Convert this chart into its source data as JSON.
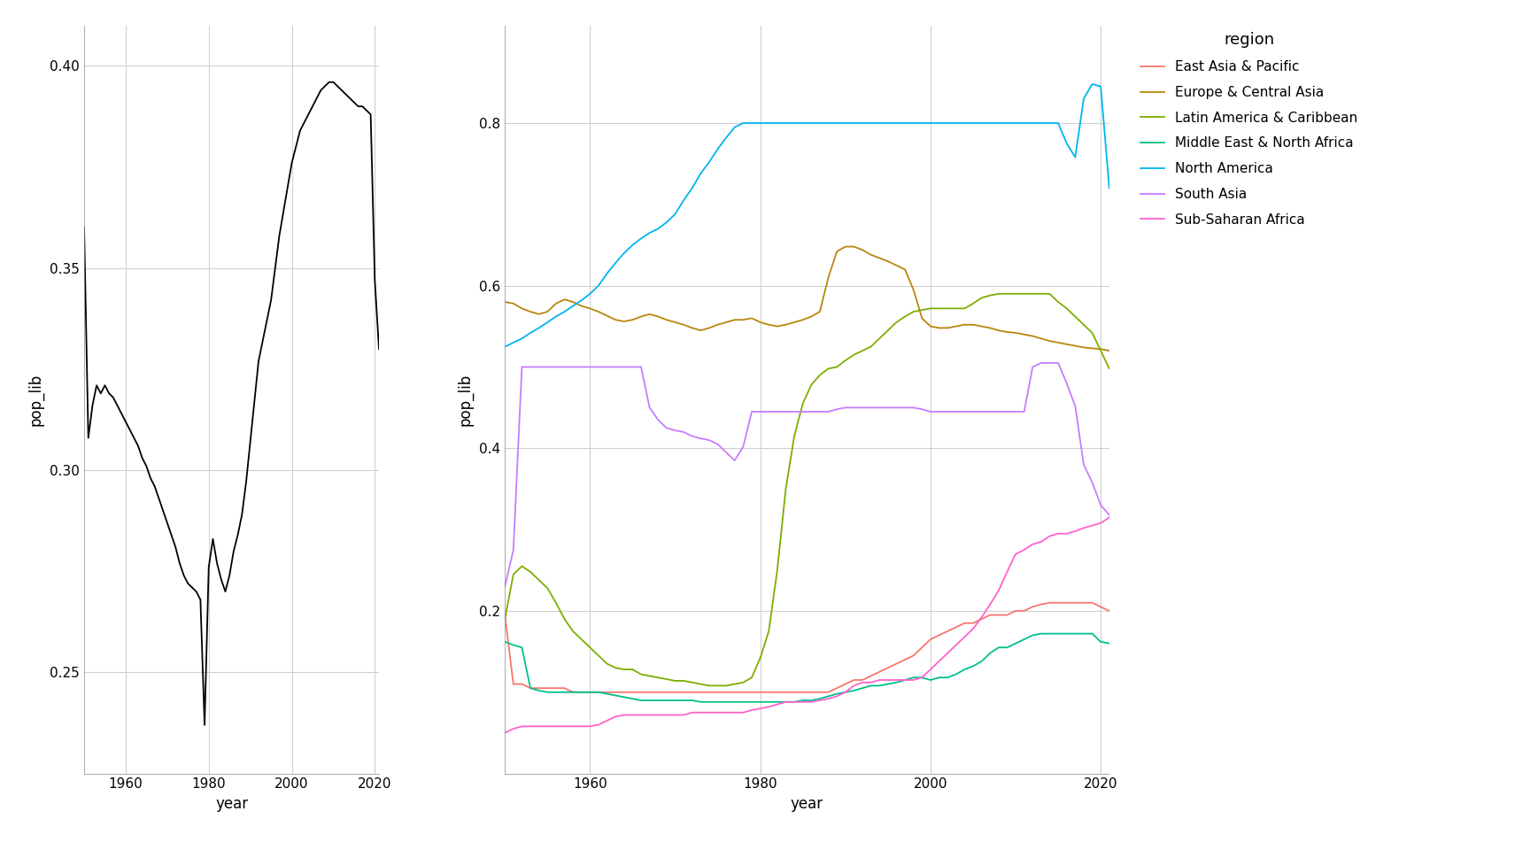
{
  "left_ylabel": "pop_lib",
  "right_ylabel": "pop_lib",
  "xlabel": "year",
  "legend_title": "region",
  "background_color": "#ffffff",
  "panel_bg": "#ffffff",
  "grid_color": "#d0d0d0",
  "left": {
    "years": [
      1950,
      1951,
      1952,
      1953,
      1954,
      1955,
      1956,
      1957,
      1958,
      1959,
      1960,
      1961,
      1962,
      1963,
      1964,
      1965,
      1966,
      1967,
      1968,
      1969,
      1970,
      1971,
      1972,
      1973,
      1974,
      1975,
      1976,
      1977,
      1978,
      1979,
      1980,
      1981,
      1982,
      1983,
      1984,
      1985,
      1986,
      1987,
      1988,
      1989,
      1990,
      1991,
      1992,
      1993,
      1994,
      1995,
      1996,
      1997,
      1998,
      1999,
      2000,
      2001,
      2002,
      2003,
      2004,
      2005,
      2006,
      2007,
      2008,
      2009,
      2010,
      2011,
      2012,
      2013,
      2014,
      2015,
      2016,
      2017,
      2018,
      2019,
      2020,
      2021
    ],
    "values": [
      0.36,
      0.308,
      0.316,
      0.321,
      0.319,
      0.321,
      0.319,
      0.318,
      0.316,
      0.314,
      0.312,
      0.31,
      0.308,
      0.306,
      0.303,
      0.301,
      0.298,
      0.296,
      0.293,
      0.29,
      0.287,
      0.284,
      0.281,
      0.277,
      0.274,
      0.272,
      0.271,
      0.27,
      0.268,
      0.237,
      0.276,
      0.283,
      0.277,
      0.273,
      0.27,
      0.274,
      0.28,
      0.284,
      0.289,
      0.297,
      0.307,
      0.317,
      0.327,
      0.332,
      0.337,
      0.342,
      0.35,
      0.358,
      0.364,
      0.37,
      0.376,
      0.38,
      0.384,
      0.386,
      0.388,
      0.39,
      0.392,
      0.394,
      0.395,
      0.396,
      0.396,
      0.395,
      0.394,
      0.393,
      0.392,
      0.391,
      0.39,
      0.39,
      0.389,
      0.388,
      0.347,
      0.33
    ]
  },
  "regions": {
    "East Asia & Pacific": {
      "color": "#f8766d",
      "years": [
        1950,
        1951,
        1952,
        1953,
        1954,
        1955,
        1956,
        1957,
        1958,
        1959,
        1960,
        1961,
        1962,
        1963,
        1964,
        1965,
        1966,
        1967,
        1968,
        1969,
        1970,
        1971,
        1972,
        1973,
        1974,
        1975,
        1976,
        1977,
        1978,
        1979,
        1980,
        1981,
        1982,
        1983,
        1984,
        1985,
        1986,
        1987,
        1988,
        1989,
        1990,
        1991,
        1992,
        1993,
        1994,
        1995,
        1996,
        1997,
        1998,
        1999,
        2000,
        2001,
        2002,
        2003,
        2004,
        2005,
        2006,
        2007,
        2008,
        2009,
        2010,
        2011,
        2012,
        2013,
        2014,
        2015,
        2016,
        2017,
        2018,
        2019,
        2020,
        2021
      ],
      "values": [
        0.195,
        0.11,
        0.11,
        0.105,
        0.105,
        0.105,
        0.105,
        0.105,
        0.1,
        0.1,
        0.1,
        0.1,
        0.1,
        0.1,
        0.1,
        0.1,
        0.1,
        0.1,
        0.1,
        0.1,
        0.1,
        0.1,
        0.1,
        0.1,
        0.1,
        0.1,
        0.1,
        0.1,
        0.1,
        0.1,
        0.1,
        0.1,
        0.1,
        0.1,
        0.1,
        0.1,
        0.1,
        0.1,
        0.1,
        0.105,
        0.11,
        0.115,
        0.115,
        0.12,
        0.125,
        0.13,
        0.135,
        0.14,
        0.145,
        0.155,
        0.165,
        0.17,
        0.175,
        0.18,
        0.185,
        0.185,
        0.19,
        0.195,
        0.195,
        0.195,
        0.2,
        0.2,
        0.205,
        0.208,
        0.21,
        0.21,
        0.21,
        0.21,
        0.21,
        0.21,
        0.205,
        0.2
      ]
    },
    "Europe & Central Asia": {
      "color": "#b8860b",
      "years": [
        1950,
        1951,
        1952,
        1953,
        1954,
        1955,
        1956,
        1957,
        1958,
        1959,
        1960,
        1961,
        1962,
        1963,
        1964,
        1965,
        1966,
        1967,
        1968,
        1969,
        1970,
        1971,
        1972,
        1973,
        1974,
        1975,
        1976,
        1977,
        1978,
        1979,
        1980,
        1981,
        1982,
        1983,
        1984,
        1985,
        1986,
        1987,
        1988,
        1989,
        1990,
        1991,
        1992,
        1993,
        1994,
        1995,
        1996,
        1997,
        1998,
        1999,
        2000,
        2001,
        2002,
        2003,
        2004,
        2005,
        2006,
        2007,
        2008,
        2009,
        2010,
        2011,
        2012,
        2013,
        2014,
        2015,
        2016,
        2017,
        2018,
        2019,
        2020,
        2021
      ],
      "values": [
        0.58,
        0.578,
        0.572,
        0.568,
        0.565,
        0.568,
        0.578,
        0.583,
        0.58,
        0.575,
        0.572,
        0.568,
        0.563,
        0.558,
        0.556,
        0.558,
        0.562,
        0.565,
        0.562,
        0.558,
        0.555,
        0.552,
        0.548,
        0.545,
        0.548,
        0.552,
        0.555,
        0.558,
        0.558,
        0.56,
        0.555,
        0.552,
        0.55,
        0.552,
        0.555,
        0.558,
        0.562,
        0.568,
        0.61,
        0.642,
        0.648,
        0.648,
        0.644,
        0.638,
        0.634,
        0.63,
        0.625,
        0.62,
        0.595,
        0.56,
        0.55,
        0.548,
        0.548,
        0.55,
        0.552,
        0.552,
        0.55,
        0.548,
        0.545,
        0.543,
        0.542,
        0.54,
        0.538,
        0.535,
        0.532,
        0.53,
        0.528,
        0.526,
        0.524,
        0.523,
        0.522,
        0.52
      ]
    },
    "Latin America & Caribbean": {
      "color": "#7cae00",
      "years": [
        1950,
        1951,
        1952,
        1953,
        1954,
        1955,
        1956,
        1957,
        1958,
        1959,
        1960,
        1961,
        1962,
        1963,
        1964,
        1965,
        1966,
        1967,
        1968,
        1969,
        1970,
        1971,
        1972,
        1973,
        1974,
        1975,
        1976,
        1977,
        1978,
        1979,
        1980,
        1981,
        1982,
        1983,
        1984,
        1985,
        1986,
        1987,
        1988,
        1989,
        1990,
        1991,
        1992,
        1993,
        1994,
        1995,
        1996,
        1997,
        1998,
        1999,
        2000,
        2001,
        2002,
        2003,
        2004,
        2005,
        2006,
        2007,
        2008,
        2009,
        2010,
        2011,
        2012,
        2013,
        2014,
        2015,
        2016,
        2017,
        2018,
        2019,
        2020,
        2021
      ],
      "values": [
        0.19,
        0.245,
        0.255,
        0.248,
        0.238,
        0.228,
        0.21,
        0.19,
        0.175,
        0.165,
        0.155,
        0.145,
        0.135,
        0.13,
        0.128,
        0.128,
        0.122,
        0.12,
        0.118,
        0.116,
        0.114,
        0.114,
        0.112,
        0.11,
        0.108,
        0.108,
        0.108,
        0.11,
        0.112,
        0.118,
        0.142,
        0.175,
        0.25,
        0.35,
        0.415,
        0.455,
        0.478,
        0.49,
        0.498,
        0.5,
        0.508,
        0.515,
        0.52,
        0.525,
        0.535,
        0.545,
        0.555,
        0.562,
        0.568,
        0.57,
        0.572,
        0.572,
        0.572,
        0.572,
        0.572,
        0.578,
        0.585,
        0.588,
        0.59,
        0.59,
        0.59,
        0.59,
        0.59,
        0.59,
        0.59,
        0.58,
        0.572,
        0.562,
        0.552,
        0.542,
        0.52,
        0.498
      ]
    },
    "Middle East & North Africa": {
      "color": "#00c08b",
      "years": [
        1950,
        1951,
        1952,
        1953,
        1954,
        1955,
        1956,
        1957,
        1958,
        1959,
        1960,
        1961,
        1962,
        1963,
        1964,
        1965,
        1966,
        1967,
        1968,
        1969,
        1970,
        1971,
        1972,
        1973,
        1974,
        1975,
        1976,
        1977,
        1978,
        1979,
        1980,
        1981,
        1982,
        1983,
        1984,
        1985,
        1986,
        1987,
        1988,
        1989,
        1990,
        1991,
        1992,
        1993,
        1994,
        1995,
        1996,
        1997,
        1998,
        1999,
        2000,
        2001,
        2002,
        2003,
        2004,
        2005,
        2006,
        2007,
        2008,
        2009,
        2010,
        2011,
        2012,
        2013,
        2014,
        2015,
        2016,
        2017,
        2018,
        2019,
        2020,
        2021
      ],
      "values": [
        0.162,
        0.158,
        0.155,
        0.105,
        0.102,
        0.1,
        0.1,
        0.1,
        0.1,
        0.1,
        0.1,
        0.1,
        0.098,
        0.096,
        0.094,
        0.092,
        0.09,
        0.09,
        0.09,
        0.09,
        0.09,
        0.09,
        0.09,
        0.088,
        0.088,
        0.088,
        0.088,
        0.088,
        0.088,
        0.088,
        0.088,
        0.088,
        0.088,
        0.088,
        0.088,
        0.09,
        0.09,
        0.092,
        0.095,
        0.098,
        0.1,
        0.102,
        0.105,
        0.108,
        0.108,
        0.11,
        0.112,
        0.115,
        0.118,
        0.118,
        0.115,
        0.118,
        0.118,
        0.122,
        0.128,
        0.132,
        0.138,
        0.148,
        0.155,
        0.155,
        0.16,
        0.165,
        0.17,
        0.172,
        0.172,
        0.172,
        0.172,
        0.172,
        0.172,
        0.172,
        0.162,
        0.16
      ]
    },
    "North America": {
      "color": "#00b4f0",
      "years": [
        1950,
        1951,
        1952,
        1953,
        1954,
        1955,
        1956,
        1957,
        1958,
        1959,
        1960,
        1961,
        1962,
        1963,
        1964,
        1965,
        1966,
        1967,
        1968,
        1969,
        1970,
        1971,
        1972,
        1973,
        1974,
        1975,
        1976,
        1977,
        1978,
        1979,
        1980,
        1981,
        1982,
        1983,
        1984,
        1985,
        1986,
        1987,
        1988,
        1989,
        1990,
        1991,
        1992,
        1993,
        1994,
        1995,
        1996,
        1997,
        1998,
        1999,
        2000,
        2001,
        2002,
        2003,
        2004,
        2005,
        2006,
        2007,
        2008,
        2009,
        2010,
        2011,
        2012,
        2013,
        2014,
        2015,
        2016,
        2017,
        2018,
        2019,
        2020,
        2021
      ],
      "values": [
        0.525,
        0.53,
        0.535,
        0.542,
        0.548,
        0.555,
        0.562,
        0.568,
        0.575,
        0.582,
        0.59,
        0.6,
        0.615,
        0.628,
        0.64,
        0.65,
        0.658,
        0.665,
        0.67,
        0.678,
        0.688,
        0.705,
        0.72,
        0.738,
        0.752,
        0.768,
        0.782,
        0.795,
        0.8,
        0.8,
        0.8,
        0.8,
        0.8,
        0.8,
        0.8,
        0.8,
        0.8,
        0.8,
        0.8,
        0.8,
        0.8,
        0.8,
        0.8,
        0.8,
        0.8,
        0.8,
        0.8,
        0.8,
        0.8,
        0.8,
        0.8,
        0.8,
        0.8,
        0.8,
        0.8,
        0.8,
        0.8,
        0.8,
        0.8,
        0.8,
        0.8,
        0.8,
        0.8,
        0.8,
        0.8,
        0.8,
        0.775,
        0.758,
        0.83,
        0.848,
        0.845,
        0.72
      ]
    },
    "South Asia": {
      "color": "#c77cff",
      "years": [
        1950,
        1951,
        1952,
        1953,
        1954,
        1955,
        1956,
        1957,
        1958,
        1959,
        1960,
        1961,
        1962,
        1963,
        1964,
        1965,
        1966,
        1967,
        1968,
        1969,
        1970,
        1971,
        1972,
        1973,
        1974,
        1975,
        1976,
        1977,
        1978,
        1979,
        1980,
        1981,
        1982,
        1983,
        1984,
        1985,
        1986,
        1987,
        1988,
        1989,
        1990,
        1991,
        1992,
        1993,
        1994,
        1995,
        1996,
        1997,
        1998,
        1999,
        2000,
        2001,
        2002,
        2003,
        2004,
        2005,
        2006,
        2007,
        2008,
        2009,
        2010,
        2011,
        2012,
        2013,
        2014,
        2015,
        2016,
        2017,
        2018,
        2019,
        2020,
        2021
      ],
      "values": [
        0.23,
        0.275,
        0.5,
        0.5,
        0.5,
        0.5,
        0.5,
        0.5,
        0.5,
        0.5,
        0.5,
        0.5,
        0.5,
        0.5,
        0.5,
        0.5,
        0.5,
        0.45,
        0.435,
        0.425,
        0.422,
        0.42,
        0.415,
        0.412,
        0.41,
        0.405,
        0.395,
        0.385,
        0.402,
        0.445,
        0.445,
        0.445,
        0.445,
        0.445,
        0.445,
        0.445,
        0.445,
        0.445,
        0.445,
        0.448,
        0.45,
        0.45,
        0.45,
        0.45,
        0.45,
        0.45,
        0.45,
        0.45,
        0.45,
        0.448,
        0.445,
        0.445,
        0.445,
        0.445,
        0.445,
        0.445,
        0.445,
        0.445,
        0.445,
        0.445,
        0.445,
        0.445,
        0.5,
        0.505,
        0.505,
        0.505,
        0.48,
        0.452,
        0.38,
        0.358,
        0.33,
        0.318
      ]
    },
    "Sub-Saharan Africa": {
      "color": "#ff61cc",
      "years": [
        1950,
        1951,
        1952,
        1953,
        1954,
        1955,
        1956,
        1957,
        1958,
        1959,
        1960,
        1961,
        1962,
        1963,
        1964,
        1965,
        1966,
        1967,
        1968,
        1969,
        1970,
        1971,
        1972,
        1973,
        1974,
        1975,
        1976,
        1977,
        1978,
        1979,
        1980,
        1981,
        1982,
        1983,
        1984,
        1985,
        1986,
        1987,
        1988,
        1989,
        1990,
        1991,
        1992,
        1993,
        1994,
        1995,
        1996,
        1997,
        1998,
        1999,
        2000,
        2001,
        2002,
        2003,
        2004,
        2005,
        2006,
        2007,
        2008,
        2009,
        2010,
        2011,
        2012,
        2013,
        2014,
        2015,
        2016,
        2017,
        2018,
        2019,
        2020,
        2021
      ],
      "values": [
        0.05,
        0.055,
        0.058,
        0.058,
        0.058,
        0.058,
        0.058,
        0.058,
        0.058,
        0.058,
        0.058,
        0.06,
        0.065,
        0.07,
        0.072,
        0.072,
        0.072,
        0.072,
        0.072,
        0.072,
        0.072,
        0.072,
        0.075,
        0.075,
        0.075,
        0.075,
        0.075,
        0.075,
        0.075,
        0.078,
        0.08,
        0.082,
        0.085,
        0.088,
        0.088,
        0.088,
        0.088,
        0.09,
        0.092,
        0.095,
        0.1,
        0.108,
        0.112,
        0.112,
        0.115,
        0.115,
        0.115,
        0.115,
        0.115,
        0.118,
        0.128,
        0.138,
        0.148,
        0.158,
        0.168,
        0.178,
        0.192,
        0.208,
        0.225,
        0.248,
        0.27,
        0.275,
        0.282,
        0.285,
        0.292,
        0.295,
        0.295,
        0.298,
        0.302,
        0.305,
        0.308,
        0.315
      ]
    }
  },
  "left_ylim": [
    0.225,
    0.41
  ],
  "left_yticks": [
    0.25,
    0.3,
    0.35,
    0.4
  ],
  "right_ylim": [
    0.0,
    0.92
  ],
  "right_yticks": [
    0.2,
    0.4,
    0.6,
    0.8
  ],
  "left_xlim": [
    1950,
    2021
  ],
  "right_xlim": [
    1950,
    2021
  ],
  "xticks": [
    1960,
    1980,
    2000,
    2020
  ]
}
